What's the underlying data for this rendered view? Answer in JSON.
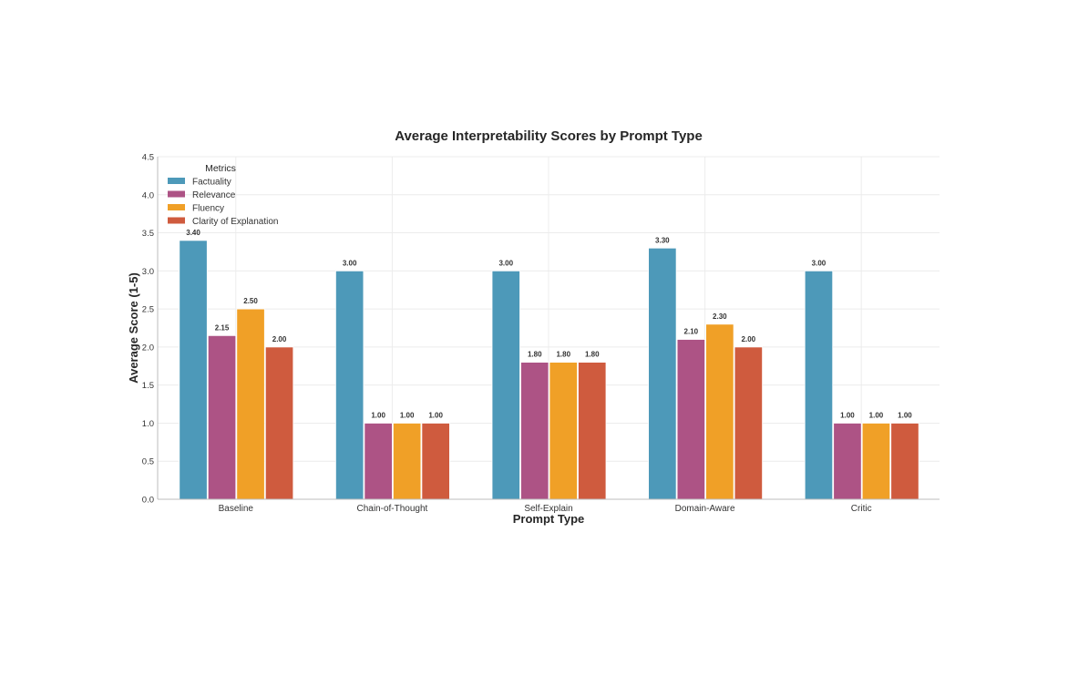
{
  "chart_data": {
    "type": "bar",
    "title": "Average Interpretability Scores by Prompt Type",
    "xlabel": "Prompt Type",
    "ylabel": "Average Score (1-5)",
    "ylim": [
      0,
      4.5
    ],
    "yticks": [
      "0.0",
      "0.5",
      "1.0",
      "1.5",
      "2.0",
      "2.5",
      "3.0",
      "3.5",
      "4.0",
      "4.5"
    ],
    "grid": true,
    "legend_title": "Metrics",
    "legend_position": "top-left",
    "categories": [
      "Baseline",
      "Chain-of-Thought",
      "Self-Explain",
      "Domain-Aware",
      "Critic"
    ],
    "series": [
      {
        "name": "Factuality",
        "color": "#4d99b9",
        "values": [
          3.4,
          3.0,
          3.0,
          3.3,
          3.0
        ],
        "labels": [
          "3.40",
          "3.00",
          "3.00",
          "3.30",
          "3.00"
        ]
      },
      {
        "name": "Relevance",
        "color": "#ad5385",
        "values": [
          2.15,
          1.0,
          1.8,
          2.1,
          1.0
        ],
        "labels": [
          "2.15",
          "1.00",
          "1.80",
          "2.10",
          "1.00"
        ]
      },
      {
        "name": "Fluency",
        "color": "#f0a027",
        "values": [
          2.5,
          1.0,
          1.8,
          2.3,
          1.0
        ],
        "labels": [
          "2.50",
          "1.00",
          "1.80",
          "2.30",
          "1.00"
        ]
      },
      {
        "name": "Clarity of Explanation",
        "color": "#cf5b3e",
        "values": [
          2.0,
          1.0,
          1.8,
          2.0,
          1.0
        ],
        "labels": [
          "2.00",
          "1.00",
          "1.80",
          "2.00",
          "1.00"
        ]
      }
    ]
  }
}
